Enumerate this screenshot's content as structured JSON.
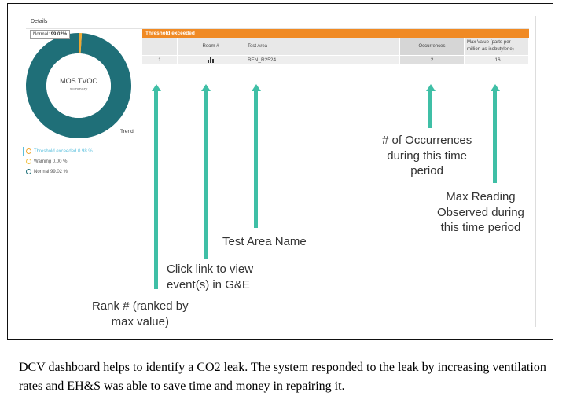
{
  "details": {
    "title": "Details"
  },
  "tooltip": {
    "label": "Normal:",
    "value": "99.02%"
  },
  "donut": {
    "title": "MOS TVOC",
    "subtitle": "summary",
    "trend_link": "Trend",
    "segments": [
      {
        "name": "Normal",
        "fraction": 0.9902,
        "color": "#1f6f78"
      },
      {
        "name": "Threshold exceeded",
        "fraction": 0.0098,
        "color": "#f0a830"
      }
    ]
  },
  "legend": [
    {
      "label": "Threshold exceeded 0.98 %",
      "color": "#5bc0de",
      "marker_color": "#f0a830",
      "active": true
    },
    {
      "label": "Warning 0.00 %",
      "color": "#555555",
      "marker_color": "#f0c040",
      "active": false
    },
    {
      "label": "Normal 99.02 %",
      "color": "#555555",
      "marker_color": "#1f6f78",
      "active": false
    }
  ],
  "table": {
    "header_title": "Threshold exceeded",
    "columns": [
      "",
      "Room #",
      "Test Area",
      "Occurrences",
      "Max Value (parts-per-",
      "million-as-isobutylene)"
    ],
    "rows": [
      {
        "rank": "1",
        "test_area": "BEN_R2524",
        "occurrences": "2",
        "max_value": "16"
      }
    ]
  },
  "annotations": {
    "rank": [
      "Rank # (ranked by",
      "max value)"
    ],
    "click": [
      "Click link to view",
      "event(s) in G&E"
    ],
    "test_area": [
      "Test Area Name"
    ],
    "occurrences": [
      "# of Occurrences",
      "during this time",
      "period"
    ],
    "max_reading": [
      "Max Reading",
      "Observed during",
      "this time period"
    ]
  },
  "caption": "DCV dashboard helps to identify a CO2 leak. The system responded to the leak by increasing ventilation rates and EH&S was able to save time and money in repairing it.",
  "colors": {
    "accent_orange": "#f08a24",
    "arrow_teal": "#3fbfa6",
    "donut_teal": "#1f6f78"
  }
}
